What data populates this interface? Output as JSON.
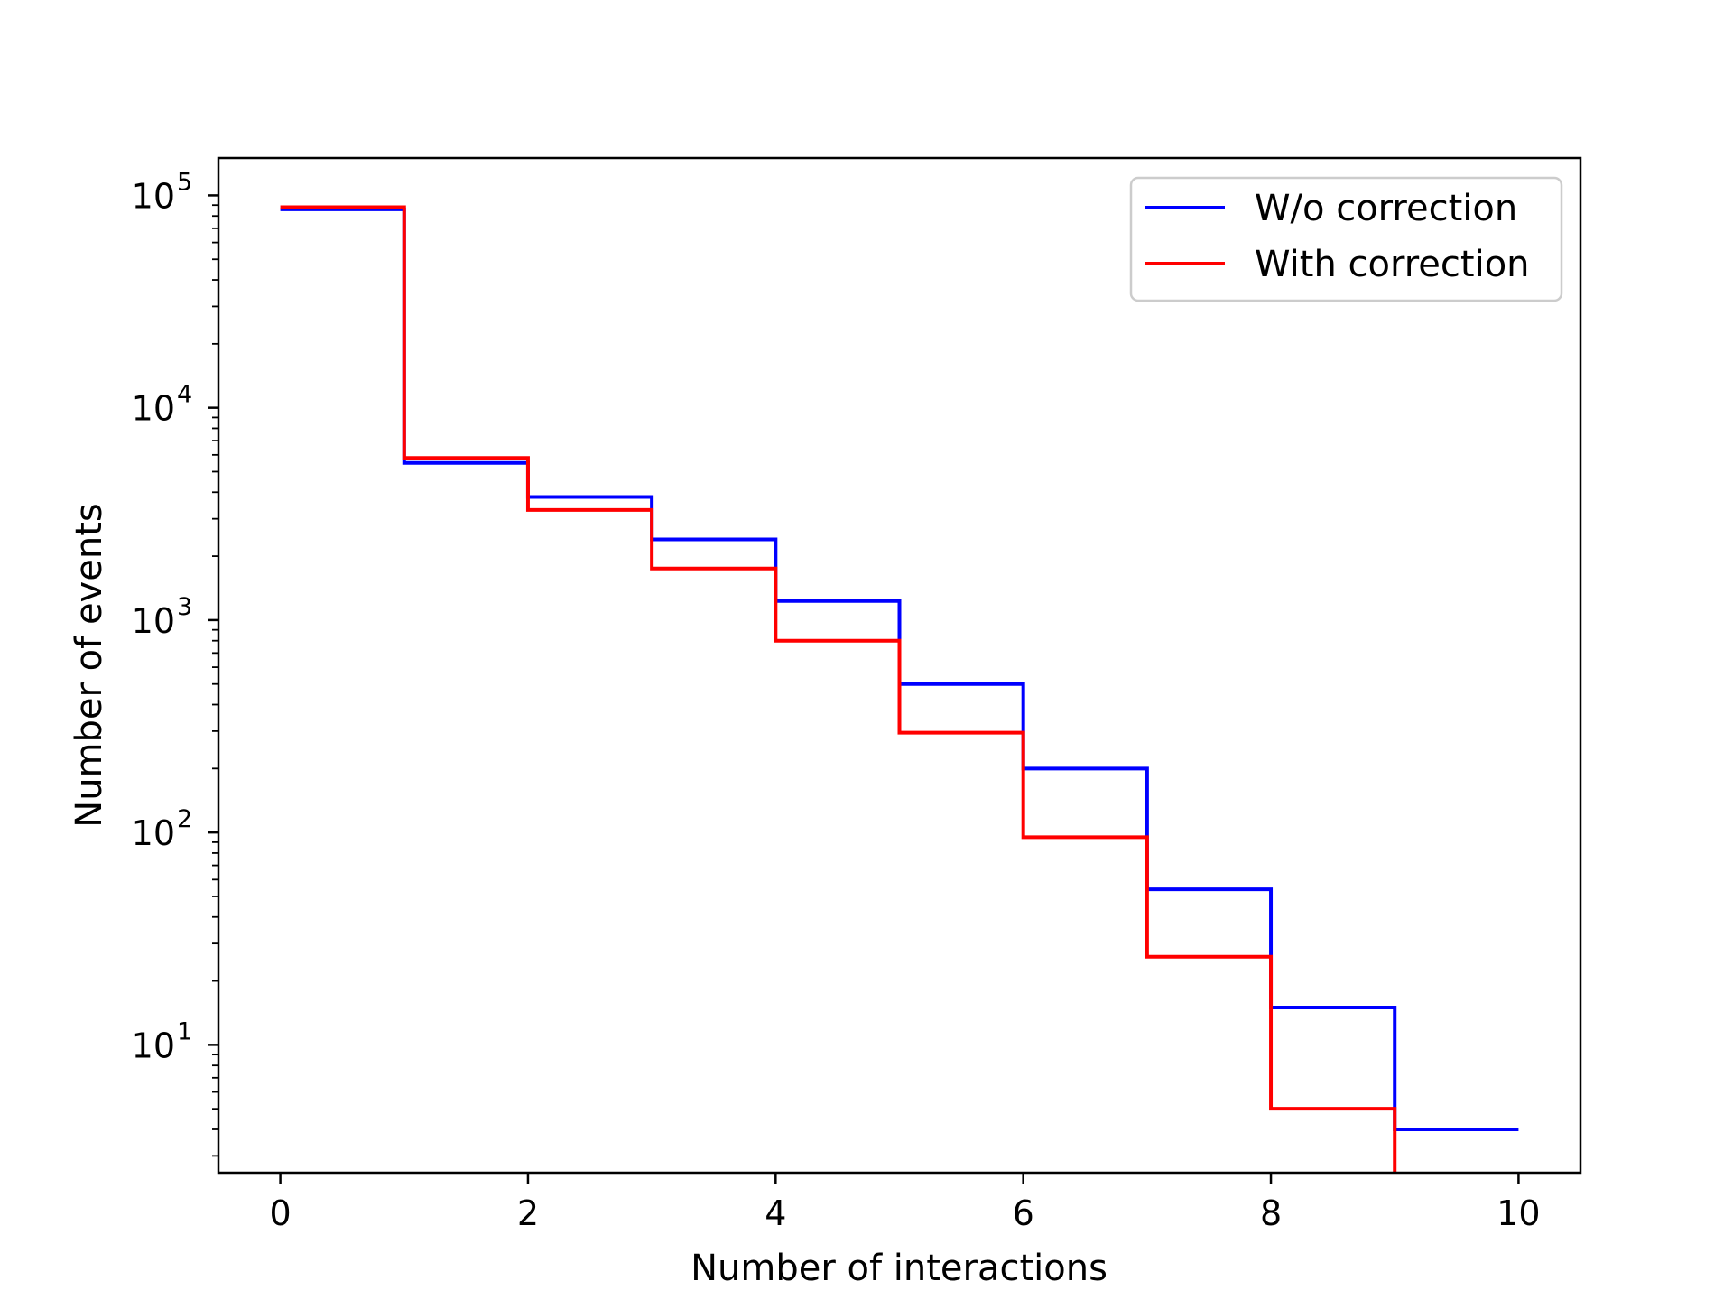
{
  "chart_data": {
    "type": "line",
    "drawstyle": "steps-post",
    "title": "",
    "xlabel": "Number of interactions",
    "ylabel": "Number of events",
    "xlim": [
      -0.5,
      10.5
    ],
    "ylim": [
      2.5,
      150000
    ],
    "yscale": "log",
    "xticks": [
      0,
      2,
      4,
      6,
      8,
      10
    ],
    "yticks": [
      {
        "value": 10,
        "base": "10",
        "exp": "1"
      },
      {
        "value": 100,
        "base": "10",
        "exp": "2"
      },
      {
        "value": 1000,
        "base": "10",
        "exp": "3"
      },
      {
        "value": 10000,
        "base": "10",
        "exp": "4"
      },
      {
        "value": 100000,
        "base": "10",
        "exp": "5"
      }
    ],
    "grid": false,
    "legend_position": "top-right",
    "x": [
      0,
      1,
      2,
      3,
      4,
      5,
      6,
      7,
      8,
      9,
      10
    ],
    "series": [
      {
        "name": "W/o correction",
        "color": "#0000ff",
        "values": [
          86000,
          5500,
          3800,
          2400,
          1230,
          500,
          200,
          54,
          15,
          4,
          4
        ]
      },
      {
        "name": "With correction",
        "color": "#ff0000",
        "values": [
          88000,
          5800,
          3300,
          1750,
          800,
          295,
          95,
          26,
          5,
          0.5,
          null
        ]
      }
    ]
  }
}
